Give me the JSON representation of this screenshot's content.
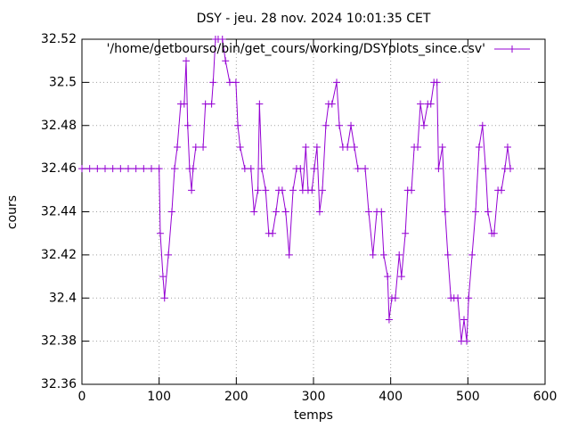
{
  "chart_data": {
    "type": "line",
    "title": "DSY - jeu. 28 nov. 2024 10:01:35 CET",
    "x_label": "temps",
    "y_label": "cours",
    "x": [
      0,
      10,
      20,
      30,
      40,
      50,
      60,
      70,
      80,
      90,
      100,
      101.5,
      105,
      107,
      112,
      116.5,
      120,
      123.5,
      128,
      132.5,
      135,
      137,
      139.5,
      142,
      144,
      147.5,
      157,
      160,
      168,
      170,
      173,
      176.5,
      182,
      186,
      191.5,
      199.5,
      202,
      205,
      211,
      219,
      223,
      228,
      230,
      233,
      238,
      242,
      247,
      251.5,
      255,
      259.5,
      264,
      268.5,
      273.5,
      278,
      283,
      286,
      290,
      293,
      298,
      301,
      304.5,
      308,
      311.5,
      316,
      319.5,
      324,
      330,
      333.5,
      338,
      344,
      348.5,
      353,
      357.5,
      367,
      371.5,
      377,
      382,
      388,
      391,
      396,
      398,
      401.5,
      406,
      411,
      414,
      419,
      422,
      427,
      430.5,
      435,
      438.5,
      443,
      448,
      452,
      456,
      460,
      462,
      467,
      470.5,
      474,
      478,
      482,
      487,
      491.5,
      495,
      498.5,
      501,
      505.5,
      510,
      514.5,
      519,
      523,
      526,
      531,
      534,
      539,
      543.5,
      548,
      551.5,
      555
    ],
    "series": [
      {
        "name": "'/home/getbourso/bin/get_cours/working/DSYplots_since.csv'",
        "color": "#9400d3",
        "values": [
          32.46,
          32.46,
          32.46,
          32.46,
          32.46,
          32.46,
          32.46,
          32.46,
          32.46,
          32.46,
          32.46,
          32.43,
          32.41,
          32.4,
          32.42,
          32.44,
          32.46,
          32.47,
          32.49,
          32.49,
          32.51,
          32.48,
          32.46,
          32.45,
          32.46,
          32.47,
          32.47,
          32.49,
          32.49,
          32.5,
          32.52,
          32.52,
          32.52,
          32.51,
          32.5,
          32.5,
          32.48,
          32.47,
          32.46,
          32.46,
          32.44,
          32.45,
          32.49,
          32.46,
          32.45,
          32.43,
          32.43,
          32.44,
          32.45,
          32.45,
          32.44,
          32.42,
          32.45,
          32.46,
          32.46,
          32.45,
          32.47,
          32.45,
          32.45,
          32.46,
          32.47,
          32.44,
          32.45,
          32.48,
          32.49,
          32.49,
          32.5,
          32.48,
          32.47,
          32.47,
          32.48,
          32.47,
          32.46,
          32.46,
          32.44,
          32.42,
          32.44,
          32.44,
          32.42,
          32.41,
          32.39,
          32.4,
          32.4,
          32.42,
          32.41,
          32.43,
          32.45,
          32.45,
          32.47,
          32.47,
          32.49,
          32.48,
          32.49,
          32.49,
          32.5,
          32.5,
          32.46,
          32.47,
          32.44,
          32.42,
          32.4,
          32.4,
          32.4,
          32.38,
          32.39,
          32.38,
          32.4,
          32.42,
          32.44,
          32.47,
          32.48,
          32.46,
          32.44,
          32.43,
          32.43,
          32.45,
          32.45,
          32.46,
          32.47,
          32.46
        ]
      }
    ],
    "xlim": [
      0,
      600
    ],
    "xticks": [
      0,
      100,
      200,
      300,
      400,
      500,
      600
    ],
    "ylim": [
      32.36,
      32.52
    ],
    "yticks": [
      32.36,
      32.38,
      32.4,
      32.42,
      32.44,
      32.46,
      32.48,
      32.5,
      32.52
    ],
    "grid": true,
    "legend": "top-right"
  }
}
